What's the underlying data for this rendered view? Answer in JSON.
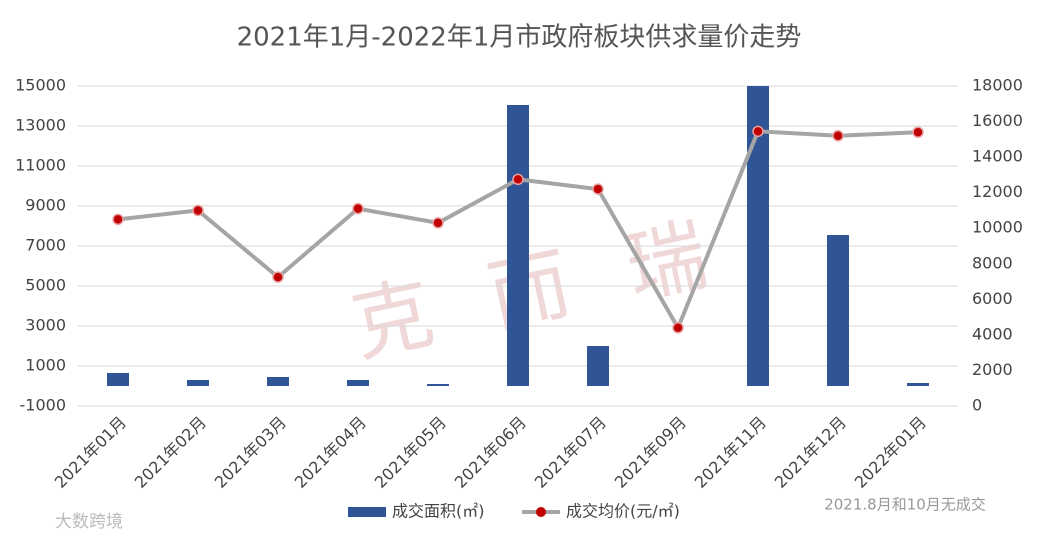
{
  "chart_data": {
    "type": "bar",
    "title": "2021年1月-2022年1月市政府板块供求量价走势",
    "categories": [
      "2021年01月",
      "2021年02月",
      "2021年03月",
      "2021年04月",
      "2021年05月",
      "2021年06月",
      "2021年07月",
      "2021年09月",
      "2021年11月",
      "2021年12月",
      "2022年01月"
    ],
    "series": [
      {
        "name": "成交面积(㎡)",
        "type": "bar",
        "color": "#2f5597",
        "values": [
          650,
          300,
          450,
          300,
          100,
          14050,
          2000,
          0,
          15000,
          7550,
          150
        ]
      },
      {
        "name": "成交均价(元/㎡)",
        "type": "line",
        "axis": "y2",
        "color": "#a5a5a5",
        "marker_color": "#c00000",
        "values": [
          10500,
          11000,
          7250,
          11100,
          10300,
          12750,
          12200,
          4400,
          15450,
          15200,
          15400
        ]
      }
    ],
    "ylim": [
      -1000,
      15000
    ],
    "yticks": [
      -1000,
      1000,
      3000,
      5000,
      7000,
      9000,
      11000,
      13000,
      15000
    ],
    "y2lim": [
      0,
      18000
    ],
    "y2ticks": [
      0,
      2000,
      4000,
      6000,
      8000,
      10000,
      12000,
      14000,
      16000,
      18000
    ],
    "grid": true,
    "note": "2021.8月和10月无成交",
    "watermark": "克而瑞",
    "source": "大数跨境"
  }
}
